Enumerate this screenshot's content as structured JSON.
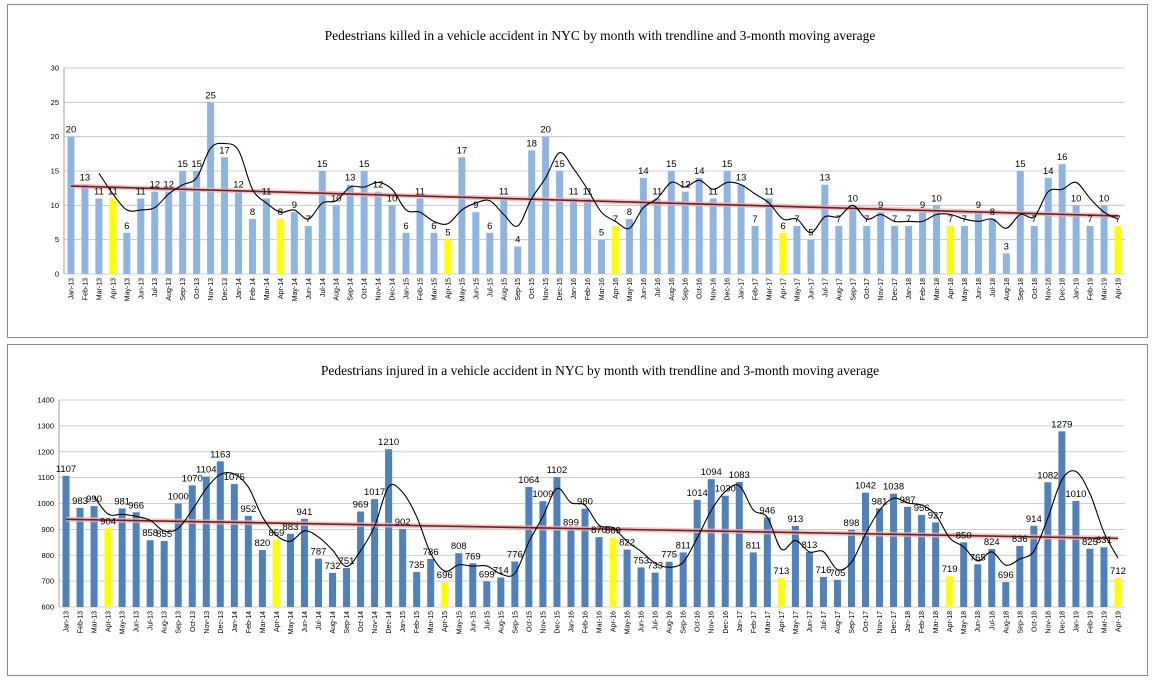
{
  "chart_data": [
    {
      "type": "bar",
      "title": "Pedestrians killed in a vehicle accident  in NYC  by month with trendline and 3-month moving average",
      "ylim": [
        0,
        30
      ],
      "yticks": [
        0,
        5,
        10,
        15,
        20,
        25,
        30
      ],
      "grid": true,
      "overlays": [
        "linear trendline",
        "3-month moving average"
      ],
      "colors": {
        "bar": "#8db4e2",
        "highlight": "#ffff00",
        "trend": "#7b1c1c",
        "trend_band": "#e6b4b4",
        "moving_average": "#000000"
      },
      "highlight_month": "Apr",
      "categories": [
        "Jan-13",
        "Feb-13",
        "Mar-13",
        "Apr-13",
        "May-13",
        "Jun-13",
        "Jul-13",
        "Aug-13",
        "Sep-13",
        "Oct-13",
        "Nov-13",
        "Dec-13",
        "Jan-14",
        "Feb-14",
        "Mar-14",
        "Apr-14",
        "May-14",
        "Jun-14",
        "Jul-14",
        "Aug-14",
        "Sep-14",
        "Oct-14",
        "Nov-14",
        "Dec-14",
        "Jan-15",
        "Feb-15",
        "Mar-15",
        "Apr-15",
        "May-15",
        "Jun-15",
        "Jul-15",
        "Aug-15",
        "Sep-15",
        "Oct-15",
        "Nov-15",
        "Dec-15",
        "Jan-16",
        "Feb-16",
        "Mar-16",
        "Apr-16",
        "May-16",
        "Jun-16",
        "Jul-16",
        "Aug-16",
        "Sep-16",
        "Oct-16",
        "Nov-16",
        "Dec-16",
        "Jan-17",
        "Feb-17",
        "Mar-17",
        "Apr-17",
        "May-17",
        "Jun-17",
        "Jul-17",
        "Aug-17",
        "Sep-17",
        "Oct-17",
        "Nov-17",
        "Dec-17",
        "Jan-18",
        "Feb-18",
        "Mar-18",
        "Apr-18",
        "May-18",
        "Jun-18",
        "Jul-18",
        "Aug-18",
        "Sep-18",
        "Oct-18",
        "Nov-18",
        "Dec-18",
        "Jan-19",
        "Feb-19",
        "Mar-19",
        "Apr-19"
      ],
      "values": [
        20,
        13,
        11,
        11,
        6,
        11,
        12,
        12,
        15,
        15,
        25,
        17,
        12,
        8,
        11,
        8,
        9,
        7,
        15,
        10,
        13,
        15,
        12,
        10,
        6,
        11,
        6,
        5,
        17,
        9,
        6,
        11,
        4,
        18,
        20,
        15,
        11,
        11,
        5,
        7,
        8,
        14,
        11,
        15,
        12,
        14,
        11,
        15,
        13,
        7,
        11,
        6,
        7,
        5,
        13,
        7,
        10,
        7,
        9,
        7,
        7,
        9,
        10,
        7,
        7,
        9,
        8,
        3,
        15,
        7,
        14,
        16,
        10,
        7,
        10,
        7
      ],
      "labeled_values": [
        20,
        13,
        11,
        11,
        6,
        11,
        12,
        12,
        15,
        15,
        25,
        17,
        12,
        8,
        11,
        8,
        9,
        7,
        15,
        10,
        13,
        15,
        12,
        10,
        6,
        11,
        6,
        5,
        17,
        9,
        6,
        11,
        4,
        18,
        20,
        15,
        11,
        11,
        5,
        7,
        8,
        14,
        11,
        15,
        12,
        14,
        11,
        15,
        13,
        7,
        11,
        6,
        7,
        5,
        13,
        7,
        10,
        7,
        9,
        7,
        7,
        9,
        10,
        7,
        7,
        9,
        8,
        3,
        15,
        7,
        14,
        16,
        10,
        7,
        10,
        7
      ]
    },
    {
      "type": "bar",
      "title": "Pedestrians injured in a vehicle accident in NYC by month with trendline and 3-month moving average",
      "ylim": [
        600,
        1400
      ],
      "yticks": [
        600,
        700,
        800,
        900,
        1000,
        1100,
        1200,
        1300,
        1400
      ],
      "grid": true,
      "overlays": [
        "linear trendline",
        "3-month moving average"
      ],
      "colors": {
        "bar": "#4f81bd",
        "highlight": "#ffff00",
        "trend": "#7b1c1c",
        "trend_band": "#e6b4b4",
        "moving_average": "#000000"
      },
      "highlight_month": "Apr",
      "categories": [
        "Jan-13",
        "Feb-13",
        "Mar-13",
        "Apr-13",
        "May-13",
        "Jun-13",
        "Jul-13",
        "Aug-13",
        "Sep-13",
        "Oct-13",
        "Nov-13",
        "Dec-13",
        "Jan-14",
        "Feb-14",
        "Mar-14",
        "Apr-14",
        "May-14",
        "Jun-14",
        "Jul-14",
        "Aug-14",
        "Sep-14",
        "Oct-14",
        "Nov-14",
        "Dec-14",
        "Jan-15",
        "Feb-15",
        "Mar-15",
        "Apr-15",
        "May-15",
        "Jun-15",
        "Jul-15",
        "Aug-15",
        "Sep-15",
        "Oct-15",
        "Nov-15",
        "Dec-15",
        "Jan-16",
        "Feb-16",
        "Mar-16",
        "Apr-16",
        "May-16",
        "Jun-16",
        "Jul-16",
        "Aug-16",
        "Sep-16",
        "Oct-16",
        "Nov-16",
        "Dec-16",
        "Jan-17",
        "Feb-17",
        "Mar-17",
        "Apr-17",
        "May-17",
        "Jun-17",
        "Jul-17",
        "Aug-17",
        "Sep-17",
        "Oct-17",
        "Nov-17",
        "Dec-17",
        "Jan-18",
        "Feb-18",
        "Mar-18",
        "Apr-18",
        "May-18",
        "Jun-18",
        "Jul-18",
        "Aug-18",
        "Sep-18",
        "Oct-18",
        "Nov-18",
        "Dec-18",
        "Jan-19",
        "Feb-19",
        "Mar-19",
        "Apr-19"
      ],
      "values": [
        1107,
        983,
        990,
        904,
        981,
        966,
        858,
        855,
        1000,
        1070,
        1104,
        1163,
        1075,
        952,
        820,
        859,
        883,
        941,
        787,
        732,
        751,
        969,
        1017,
        1210,
        902,
        735,
        786,
        696,
        808,
        769,
        699,
        714,
        776,
        1064,
        1009,
        1102,
        899,
        980,
        870,
        869,
        822,
        753,
        733,
        775,
        811,
        1014,
        1094,
        1030,
        1083,
        811,
        946,
        713,
        913,
        813,
        716,
        705,
        898,
        1042,
        981,
        1038,
        987,
        956,
        927,
        719,
        850,
        765,
        824,
        696,
        836,
        914,
        1082,
        1279,
        1010,
        825,
        831,
        712
      ],
      "labeled_values": [
        1107,
        983,
        990,
        904,
        981,
        966,
        858,
        855,
        1000,
        1070,
        1104,
        1163,
        1075,
        952,
        820,
        859,
        883,
        941,
        787,
        732,
        751,
        969,
        1017,
        1210,
        902,
        735,
        786,
        696,
        808,
        769,
        699,
        714,
        776,
        1064,
        1009,
        1102,
        899,
        980,
        870,
        869,
        822,
        753,
        733,
        775,
        811,
        1014,
        1094,
        1030,
        1083,
        811,
        946,
        713,
        913,
        813,
        716,
        705,
        898,
        1042,
        981,
        1038,
        987,
        956,
        927,
        719,
        850,
        765,
        824,
        696,
        836,
        914,
        1082,
        1279,
        1010,
        825,
        831,
        712
      ]
    }
  ]
}
